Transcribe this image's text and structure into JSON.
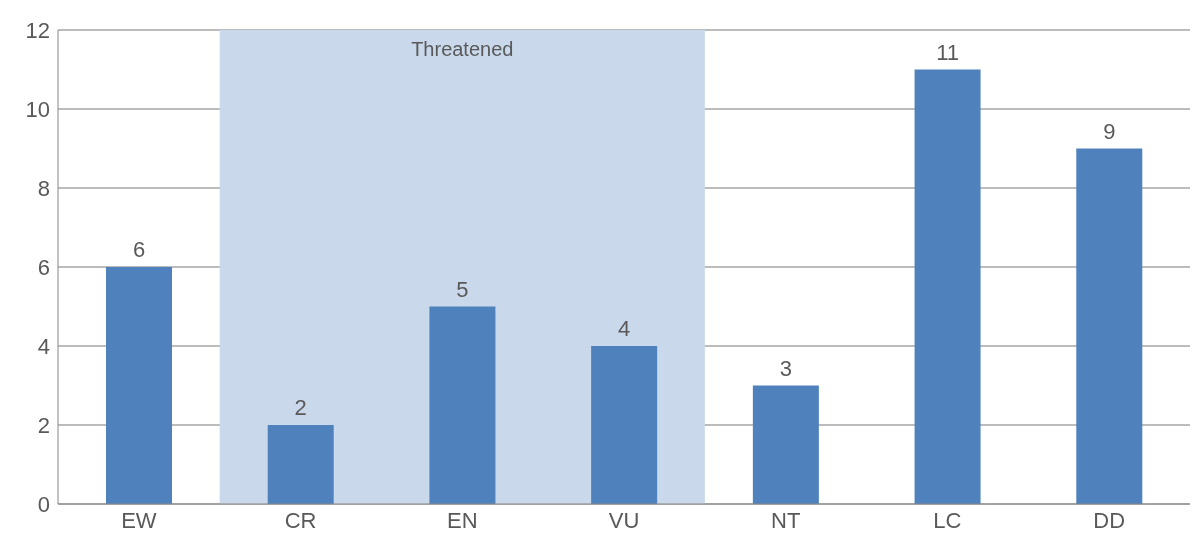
{
  "chart_data": {
    "type": "bar",
    "categories": [
      "EW",
      "CR",
      "EN",
      "VU",
      "NT",
      "LC",
      "DD"
    ],
    "values": [
      6,
      2,
      5,
      4,
      3,
      11,
      9
    ],
    "color": "#4f81bd",
    "ylim": [
      0,
      12
    ],
    "yticks": [
      0,
      2,
      4,
      6,
      8,
      10,
      12
    ],
    "grid": "y",
    "data_labels": true,
    "bands": [
      {
        "axis": "x",
        "from": "CR",
        "to": "VU",
        "label": "Threatened",
        "color": "#c9d8ea"
      }
    ]
  }
}
